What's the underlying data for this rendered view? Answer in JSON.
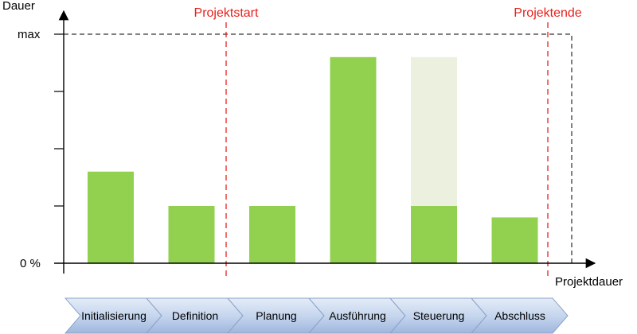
{
  "chart_data": {
    "type": "bar",
    "ylabel": "Dauer",
    "xlabel": "Projektdauer",
    "ytick_labels": [
      "0 %",
      "max"
    ],
    "ylim": [
      0,
      4
    ],
    "categories": [
      "Initialisierung",
      "Definition",
      "Planung",
      "Ausführung",
      "Steuerung",
      "Abschluss"
    ],
    "series": [
      {
        "values": [
          1.6,
          1.0,
          1.0,
          3.6,
          1.0,
          0.8
        ],
        "color": "#92d050"
      },
      {
        "values": [
          0,
          0,
          0,
          0,
          3.6,
          0
        ],
        "color": "#ebf1de"
      }
    ],
    "max_line": 4,
    "markers": [
      {
        "label": "Projektstart",
        "color": "#e8201c"
      },
      {
        "label": "Projektende",
        "color": "#e8201c"
      }
    ],
    "grid": false,
    "legend": "none"
  }
}
